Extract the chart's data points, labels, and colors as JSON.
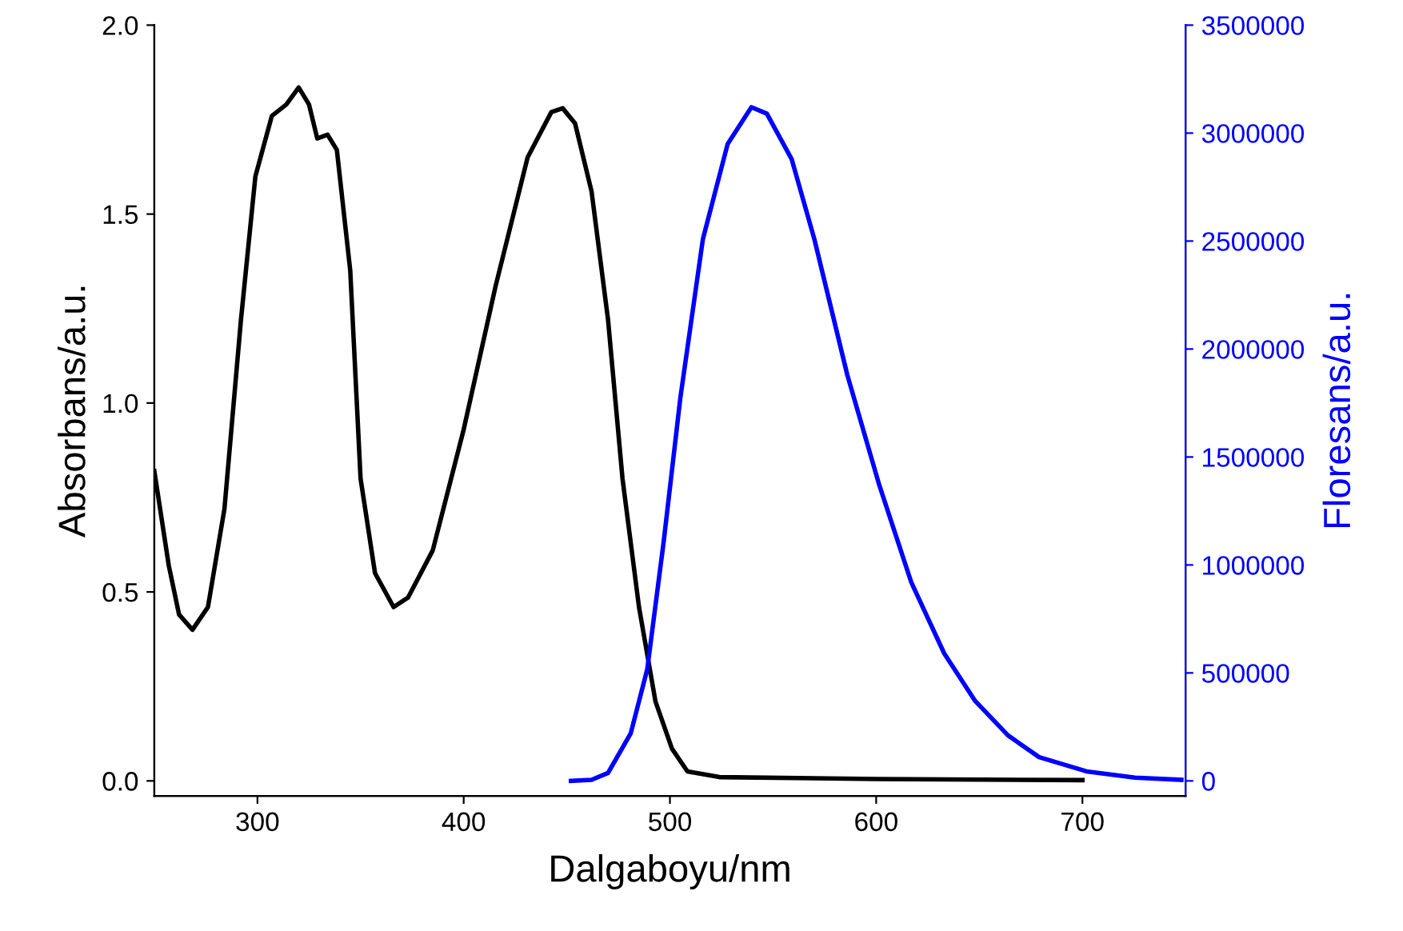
{
  "chart_data": {
    "type": "line",
    "xlabel": "Dalgaboyu/nm",
    "ylabel": "Absorbans/a.u.",
    "y2label": "Floresans/a.u.",
    "xlim": [
      250,
      750
    ],
    "xticks": [
      300,
      400,
      500,
      600,
      700
    ],
    "ylim": [
      -0.04,
      2.0
    ],
    "yticks": [
      {
        "value": 0,
        "label": "0.0"
      },
      0.5,
      {
        "value": 1,
        "label": "1.0"
      },
      1.5,
      {
        "value": 2,
        "label": "2.0"
      }
    ],
    "y2lim": [
      -70000,
      3500000
    ],
    "y2ticks": [
      0,
      500000,
      1000000,
      1500000,
      2000000,
      2500000,
      3000000,
      3500000
    ],
    "grid": false,
    "legend": false,
    "marker": "none",
    "line_style": "solid",
    "series": [
      {
        "color": "#000000",
        "x": [
          250,
          257,
          262,
          268.5,
          276,
          284,
          292,
          299,
          307,
          314,
          320,
          325,
          329,
          334,
          338.5,
          345,
          350,
          357,
          366,
          373,
          385,
          400,
          415.5,
          431,
          442.5,
          448,
          454,
          462,
          470,
          477,
          485,
          493,
          501,
          508.5,
          524,
          601,
          700
        ],
        "values": [
          0.82,
          0.57,
          0.44,
          0.4,
          0.46,
          0.72,
          1.22,
          1.6,
          1.76,
          1.79,
          1.835,
          1.79,
          1.7,
          1.71,
          1.67,
          1.35,
          0.8,
          0.55,
          0.46,
          0.485,
          0.61,
          0.93,
          1.31,
          1.65,
          1.77,
          1.78,
          1.74,
          1.56,
          1.22,
          0.8,
          0.46,
          0.21,
          0.085,
          0.025,
          0.01,
          0.005,
          0.002
        ]
      },
      {
        "color": "#0000ff",
        "axis": "y2",
        "x": [
          452,
          462,
          470,
          481,
          489,
          497,
          505,
          516,
          528,
          539.5,
          547,
          559,
          570,
          586,
          601.5,
          617,
          633,
          648,
          664,
          679,
          702,
          725.5,
          748
        ],
        "values": [
          0,
          5000,
          37000,
          220000,
          517000,
          1110000,
          1770000,
          2510000,
          2950000,
          3120000,
          3090000,
          2880000,
          2510000,
          1880000,
          1370000,
          920000,
          590000,
          370000,
          210000,
          110000,
          44000,
          15000,
          5000
        ]
      }
    ]
  }
}
